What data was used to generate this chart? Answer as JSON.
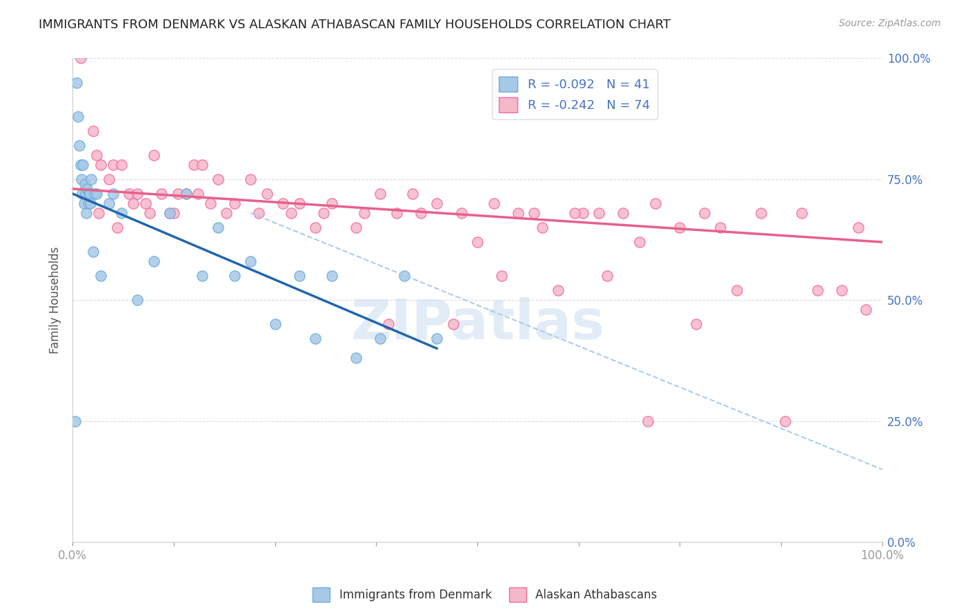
{
  "title": "IMMIGRANTS FROM DENMARK VS ALASKAN ATHABASCAN FAMILY HOUSEHOLDS CORRELATION CHART",
  "source": "Source: ZipAtlas.com",
  "ylabel": "Family Households",
  "legend_blue_r": "R = -0.092",
  "legend_blue_n": "N = 41",
  "legend_pink_r": "R = -0.242",
  "legend_pink_n": "N = 74",
  "legend_label_blue": "Immigrants from Denmark",
  "legend_label_pink": "Alaskan Athabascans",
  "blue_color": "#a8c8e8",
  "blue_color_edge": "#6baed6",
  "pink_color": "#f4b8c8",
  "pink_color_edge": "#f768a1",
  "blue_line_color": "#2166ac",
  "pink_line_color": "#e8608a",
  "dashed_line_color": "#aaccee",
  "watermark_color": "#d0e0f0",
  "background_color": "#ffffff",
  "right_axis_color": "#4472c4",
  "blue_scatter_x": [
    0.3,
    0.5,
    0.7,
    0.8,
    1.0,
    1.1,
    1.2,
    1.3,
    1.4,
    1.5,
    1.6,
    1.7,
    1.8,
    1.9,
    2.0,
    2.1,
    2.2,
    2.3,
    2.5,
    2.7,
    3.0,
    3.5,
    4.5,
    5.0,
    6.0,
    8.0,
    10.0,
    12.0,
    14.0,
    16.0,
    18.0,
    20.0,
    22.0,
    25.0,
    28.0,
    30.0,
    32.0,
    35.0,
    38.0,
    41.0,
    45.0
  ],
  "blue_scatter_y": [
    25.0,
    95.0,
    88.0,
    82.0,
    78.0,
    75.0,
    72.0,
    78.0,
    70.0,
    74.0,
    72.0,
    68.0,
    73.0,
    70.0,
    72.0,
    72.0,
    70.0,
    75.0,
    60.0,
    72.0,
    72.0,
    55.0,
    70.0,
    72.0,
    68.0,
    50.0,
    58.0,
    68.0,
    72.0,
    55.0,
    65.0,
    55.0,
    58.0,
    45.0,
    55.0,
    42.0,
    55.0,
    38.0,
    42.0,
    55.0,
    42.0
  ],
  "pink_scatter_x": [
    1.0,
    2.5,
    3.0,
    3.5,
    4.5,
    5.0,
    6.0,
    7.0,
    8.0,
    9.0,
    10.0,
    11.0,
    12.0,
    13.0,
    14.0,
    15.0,
    16.0,
    17.0,
    18.0,
    20.0,
    22.0,
    24.0,
    26.0,
    28.0,
    30.0,
    32.0,
    35.0,
    38.0,
    40.0,
    42.0,
    45.0,
    48.0,
    50.0,
    52.0,
    55.0,
    58.0,
    60.0,
    63.0,
    65.0,
    68.0,
    70.0,
    72.0,
    75.0,
    78.0,
    80.0,
    82.0,
    85.0,
    88.0,
    90.0,
    92.0,
    95.0,
    97.0,
    98.0,
    2.0,
    3.2,
    5.5,
    7.5,
    9.5,
    12.5,
    15.5,
    19.0,
    23.0,
    27.0,
    31.0,
    36.0,
    39.0,
    43.0,
    47.0,
    53.0,
    57.0,
    62.0,
    66.0,
    71.0,
    77.0
  ],
  "pink_scatter_y": [
    100.0,
    85.0,
    80.0,
    78.0,
    75.0,
    78.0,
    78.0,
    72.0,
    72.0,
    70.0,
    80.0,
    72.0,
    68.0,
    72.0,
    72.0,
    78.0,
    78.0,
    70.0,
    75.0,
    70.0,
    75.0,
    72.0,
    70.0,
    70.0,
    65.0,
    70.0,
    65.0,
    72.0,
    68.0,
    72.0,
    70.0,
    68.0,
    62.0,
    70.0,
    68.0,
    65.0,
    52.0,
    68.0,
    68.0,
    68.0,
    62.0,
    70.0,
    65.0,
    68.0,
    65.0,
    52.0,
    68.0,
    25.0,
    68.0,
    52.0,
    52.0,
    65.0,
    48.0,
    72.0,
    68.0,
    65.0,
    70.0,
    68.0,
    68.0,
    72.0,
    68.0,
    68.0,
    68.0,
    68.0,
    68.0,
    45.0,
    68.0,
    45.0,
    55.0,
    68.0,
    68.0,
    55.0,
    25.0,
    45.0
  ],
  "xlim": [
    0,
    100
  ],
  "ylim": [
    0,
    100
  ],
  "blue_trend_x": [
    0,
    45
  ],
  "blue_trend_y": [
    72.0,
    40.0
  ],
  "pink_trend_x": [
    0,
    100
  ],
  "pink_trend_y": [
    73.0,
    62.0
  ],
  "dashed_trend_x": [
    22,
    100
  ],
  "dashed_trend_y": [
    68.0,
    15.0
  ],
  "ytick_positions": [
    0,
    25,
    50,
    75,
    100
  ],
  "xtick_positions": [
    0,
    12.5,
    25,
    37.5,
    50,
    62.5,
    75,
    87.5,
    100
  ]
}
